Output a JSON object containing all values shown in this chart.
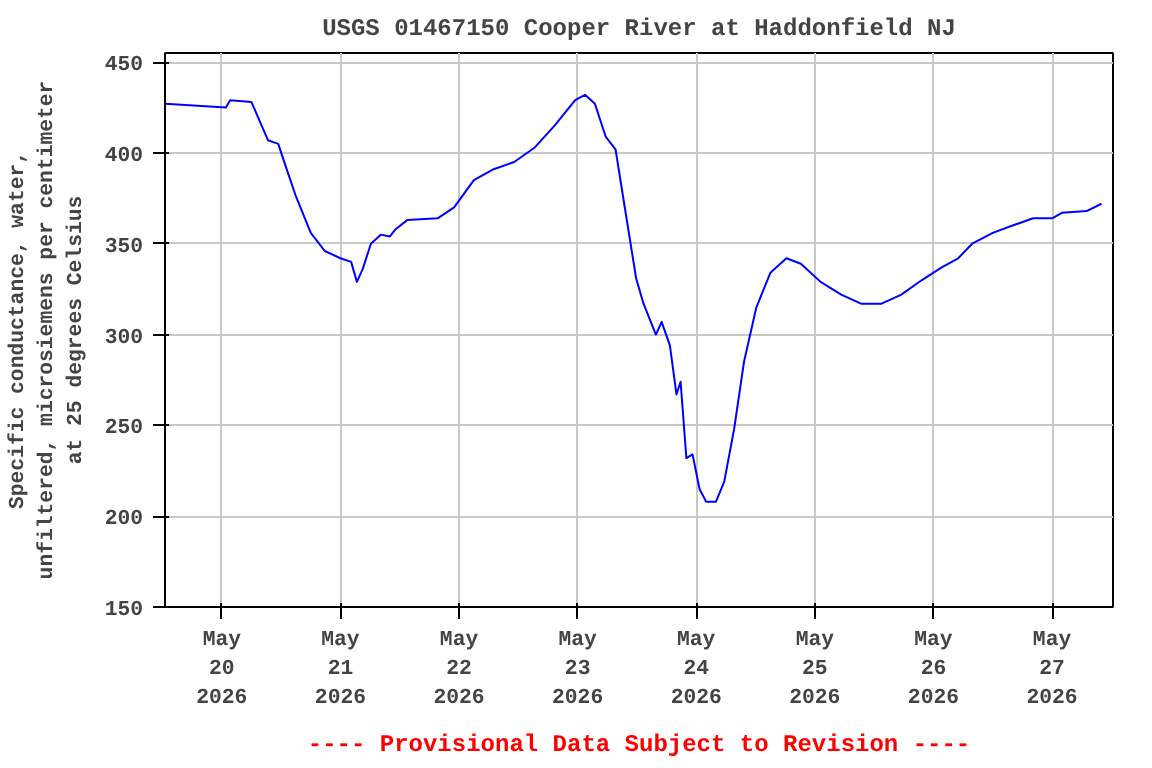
{
  "chart_data": {
    "type": "line",
    "title": "USGS 01467150 Cooper River at Haddonfield NJ",
    "ylabel": "Specific conductance, water,\nunfiltered, microsiemens per centimeter\nat 25 degrees Celsius",
    "annotations": [
      "---- Provisional Data Subject to Revision ----"
    ],
    "series": [
      {
        "color": "#0000ff",
        "x": [
          "2026-05-19T12:30",
          "2026-05-20T00:50",
          "2026-05-20T01:40",
          "2026-05-20T06:00",
          "2026-05-20T07:45",
          "2026-05-20T09:20",
          "2026-05-20T11:25",
          "2026-05-20T13:00",
          "2026-05-20T15:00",
          "2026-05-20T18:00",
          "2026-05-20T20:50",
          "2026-05-21T00:00",
          "2026-05-21T02:10",
          "2026-05-21T03:20",
          "2026-05-21T04:30",
          "2026-05-21T06:10",
          "2026-05-21T08:10",
          "2026-05-21T10:00",
          "2026-05-21T11:10",
          "2026-05-21T13:30",
          "2026-05-21T19:40",
          "2026-05-21T23:00",
          "2026-05-22T03:00",
          "2026-05-22T07:00",
          "2026-05-22T11:10",
          "2026-05-22T15:20",
          "2026-05-22T19:20",
          "2026-05-22T23:30",
          "2026-05-23T01:30",
          "2026-05-23T03:30",
          "2026-05-23T05:40",
          "2026-05-23T07:40",
          "2026-05-23T09:50",
          "2026-05-23T11:50",
          "2026-05-23T13:20",
          "2026-05-23T15:50",
          "2026-05-23T17:00",
          "2026-05-23T18:40",
          "2026-05-23T20:00",
          "2026-05-23T20:50",
          "2026-05-23T22:00",
          "2026-05-23T23:15",
          "2026-05-24T00:40",
          "2026-05-24T02:00",
          "2026-05-24T04:00",
          "2026-05-24T05:40",
          "2026-05-24T07:40",
          "2026-05-24T09:40",
          "2026-05-24T12:10",
          "2026-05-24T15:00",
          "2026-05-24T18:15",
          "2026-05-24T21:10",
          "2026-05-25T01:10",
          "2026-05-25T05:20",
          "2026-05-25T09:20",
          "2026-05-25T13:30",
          "2026-05-25T17:30",
          "2026-05-25T21:40",
          "2026-05-26T01:40",
          "2026-05-26T05:00",
          "2026-05-26T07:50",
          "2026-05-26T12:00",
          "2026-05-26T16:00",
          "2026-05-26T20:10",
          "2026-05-27T00:00",
          "2026-05-27T02:00",
          "2026-05-27T07:00",
          "2026-05-27T10:00"
        ],
        "values": [
          427,
          425,
          429,
          428,
          417,
          407,
          405,
          392,
          376,
          356,
          346,
          342,
          340,
          329,
          336,
          350,
          355,
          354,
          358,
          363,
          364,
          370,
          385,
          391,
          395,
          403,
          415,
          429,
          432,
          427,
          409,
          402,
          365,
          331,
          317,
          300,
          307,
          294,
          267,
          274,
          232,
          234,
          215,
          208,
          208,
          219,
          248,
          285,
          315,
          334,
          342,
          339,
          329,
          322,
          317,
          317,
          322,
          330,
          337,
          342,
          350,
          356,
          360,
          364,
          364,
          367,
          368,
          372
        ]
      }
    ],
    "xlim": [
      "2026-05-19T12:30",
      "2026-05-27T12:20"
    ],
    "xticks": [
      {
        "value": "2026-05-20",
        "label": "May\n20\n2026"
      },
      {
        "value": "2026-05-21",
        "label": "May\n21\n2026"
      },
      {
        "value": "2026-05-22",
        "label": "May\n22\n2026"
      },
      {
        "value": "2026-05-23",
        "label": "May\n23\n2026"
      },
      {
        "value": "2026-05-24",
        "label": "May\n24\n2026"
      },
      {
        "value": "2026-05-25",
        "label": "May\n25\n2026"
      },
      {
        "value": "2026-05-26",
        "label": "May\n26\n2026"
      },
      {
        "value": "2026-05-27",
        "label": "May\n27\n2026"
      }
    ],
    "ylim": [
      150,
      455
    ],
    "yticks": [
      150,
      200,
      250,
      300,
      350,
      400,
      450
    ],
    "grid": true
  }
}
